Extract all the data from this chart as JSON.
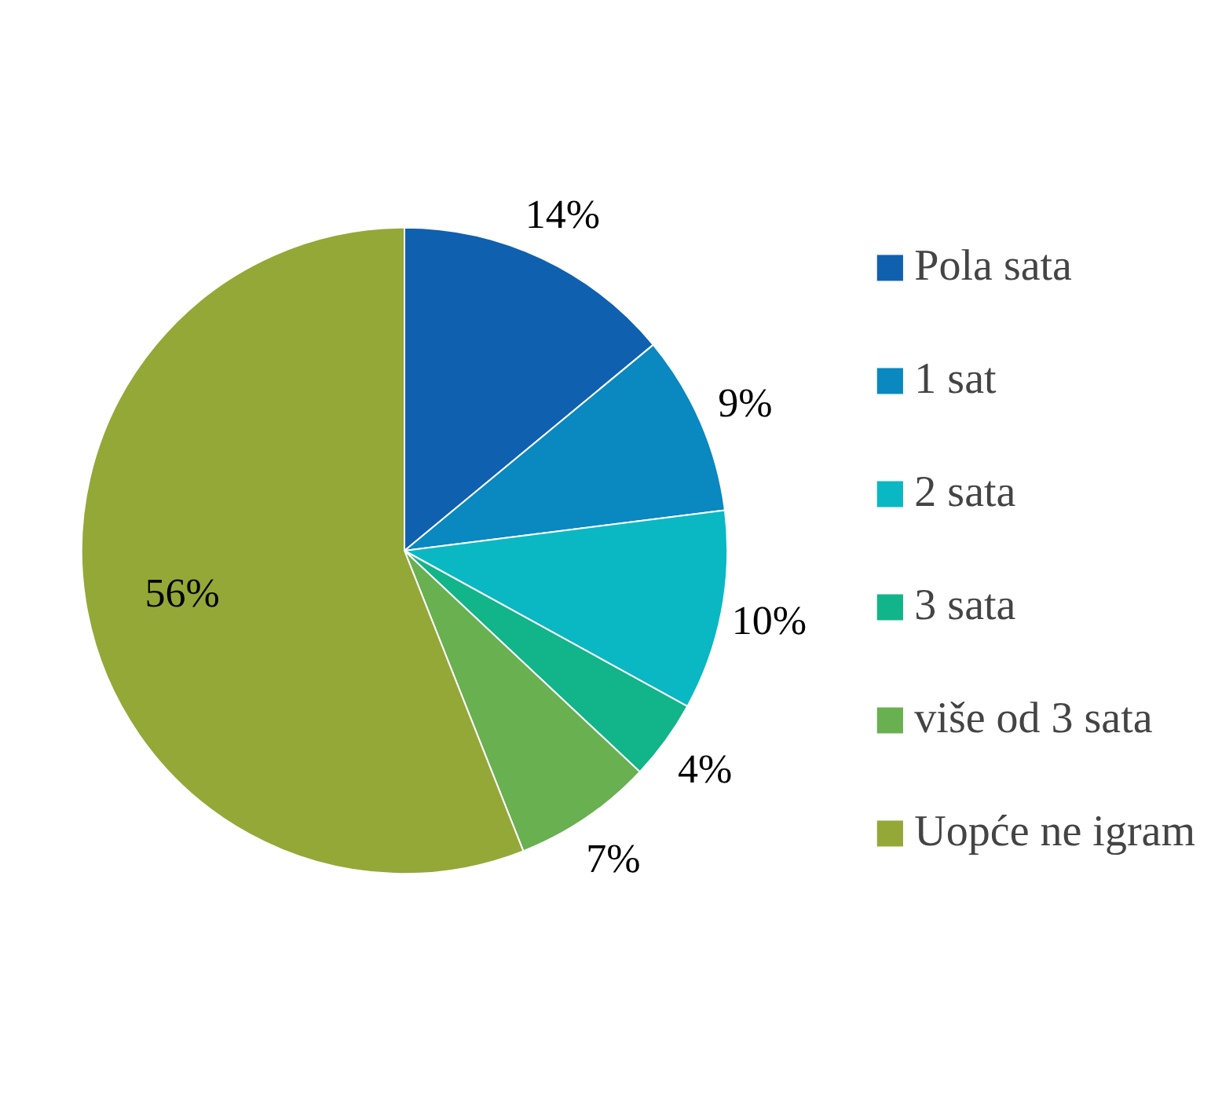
{
  "chart_data": {
    "type": "pie",
    "categories": [
      "Pola sata",
      "1 sat",
      "2 sata",
      "3 sata",
      "više od 3 sata",
      "Uopće ne igram"
    ],
    "values": [
      14,
      9,
      10,
      4,
      7,
      56
    ],
    "colors": [
      "#1060b0",
      "#0a88c0",
      "#0ab8c4",
      "#12b48a",
      "#68b050",
      "#94a838"
    ],
    "value_labels": [
      "14%",
      "9%",
      "10%",
      "4%",
      "7%",
      "56%"
    ],
    "legend": "right"
  }
}
